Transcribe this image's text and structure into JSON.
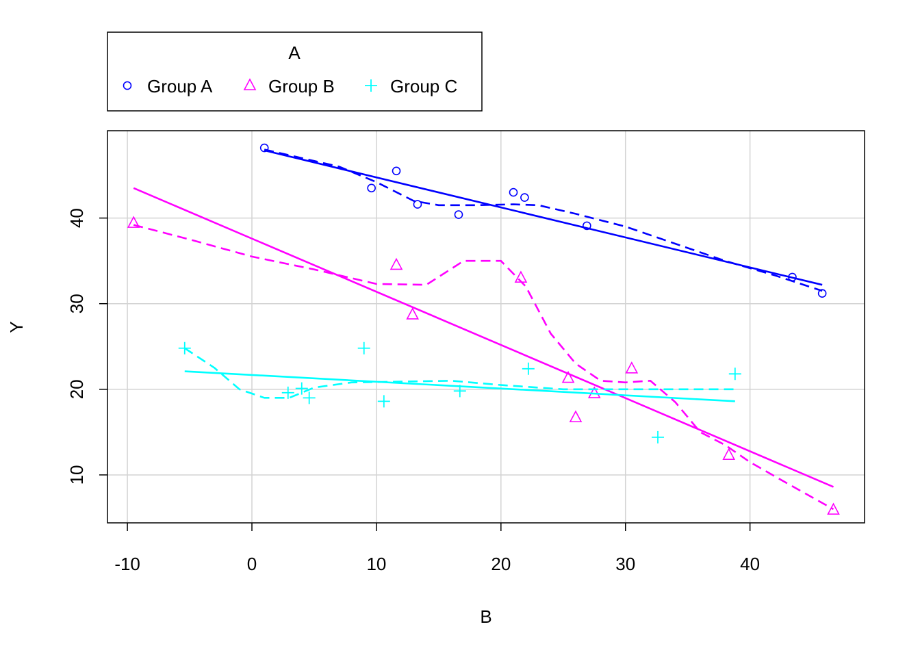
{
  "chart_data": {
    "type": "scatter",
    "xlabel": "B",
    "ylabel": "Y",
    "xlim": [
      -11.6,
      49.2
    ],
    "ylim": [
      4.4,
      50.2
    ],
    "x_ticks": [
      -10,
      0,
      10,
      20,
      30,
      40
    ],
    "y_ticks": [
      10,
      20,
      30,
      40
    ],
    "x_tick_labels": [
      "-10",
      "0",
      "10",
      "20",
      "30",
      "40"
    ],
    "y_tick_labels": [
      "10",
      "20",
      "30",
      "40"
    ],
    "grid": true,
    "legend": {
      "title": "A",
      "placement": "top-left, outside plot area"
    },
    "series": [
      {
        "name": "Group A",
        "color": "#0000FF",
        "marker": "circle",
        "points": [
          [
            1.0,
            48.2
          ],
          [
            9.6,
            43.5
          ],
          [
            11.6,
            45.5
          ],
          [
            13.3,
            41.6
          ],
          [
            16.6,
            40.4
          ],
          [
            21.0,
            43.0
          ],
          [
            21.9,
            42.4
          ],
          [
            26.9,
            39.1
          ],
          [
            43.4,
            33.1
          ],
          [
            45.8,
            31.2
          ]
        ],
        "fit_line": [
          [
            1.0,
            47.9
          ],
          [
            45.8,
            32.2
          ]
        ],
        "smooth_line": [
          [
            1.0,
            48.0
          ],
          [
            4.0,
            47.0
          ],
          [
            7.0,
            46.0
          ],
          [
            10.0,
            44.2
          ],
          [
            13.0,
            42.0
          ],
          [
            15.0,
            41.5
          ],
          [
            18.0,
            41.5
          ],
          [
            21.0,
            41.6
          ],
          [
            23.0,
            41.5
          ],
          [
            26.0,
            40.5
          ],
          [
            30.0,
            39.0
          ],
          [
            34.0,
            37.0
          ],
          [
            38.0,
            35.0
          ],
          [
            42.0,
            33.3
          ],
          [
            45.8,
            31.5
          ]
        ]
      },
      {
        "name": "Group B",
        "color": "#FF00FF",
        "marker": "triangle",
        "points": [
          [
            -9.5,
            39.4
          ],
          [
            11.6,
            34.5
          ],
          [
            12.9,
            28.7
          ],
          [
            21.6,
            33.0
          ],
          [
            25.4,
            21.3
          ],
          [
            26.0,
            16.7
          ],
          [
            27.5,
            19.5
          ],
          [
            30.5,
            22.4
          ],
          [
            38.3,
            12.3
          ],
          [
            46.7,
            5.9
          ]
        ],
        "fit_line": [
          [
            -9.5,
            43.5
          ],
          [
            46.7,
            8.6
          ]
        ],
        "smooth_line": [
          [
            -9.5,
            39.2
          ],
          [
            -5.0,
            37.5
          ],
          [
            0.0,
            35.5
          ],
          [
            5.0,
            34.0
          ],
          [
            10.0,
            32.3
          ],
          [
            14.0,
            32.2
          ],
          [
            17.0,
            35.0
          ],
          [
            20.0,
            35.0
          ],
          [
            22.0,
            32.0
          ],
          [
            24.0,
            26.5
          ],
          [
            26.0,
            23.0
          ],
          [
            28.0,
            21.0
          ],
          [
            30.0,
            20.8
          ],
          [
            32.0,
            21.0
          ],
          [
            34.0,
            18.5
          ],
          [
            36.0,
            15.0
          ],
          [
            38.0,
            13.5
          ],
          [
            40.0,
            11.5
          ],
          [
            43.0,
            9.0
          ],
          [
            46.7,
            6.0
          ]
        ]
      },
      {
        "name": "Group C",
        "color": "#00FFFF",
        "marker": "plus",
        "points": [
          [
            -5.4,
            24.8
          ],
          [
            2.9,
            19.6
          ],
          [
            4.0,
            20.1
          ],
          [
            4.6,
            19.0
          ],
          [
            9.0,
            24.8
          ],
          [
            10.6,
            18.6
          ],
          [
            16.7,
            19.8
          ],
          [
            22.2,
            22.4
          ],
          [
            32.6,
            14.4
          ],
          [
            38.8,
            21.8
          ]
        ],
        "fit_line": [
          [
            -5.4,
            22.1
          ],
          [
            38.8,
            18.6
          ]
        ],
        "smooth_line": [
          [
            -5.4,
            24.8
          ],
          [
            -3.0,
            22.5
          ],
          [
            -1.0,
            20.0
          ],
          [
            1.0,
            19.0
          ],
          [
            3.0,
            19.0
          ],
          [
            5.0,
            20.2
          ],
          [
            8.0,
            20.8
          ],
          [
            12.0,
            20.9
          ],
          [
            16.0,
            21.0
          ],
          [
            20.0,
            20.5
          ],
          [
            25.0,
            20.0
          ],
          [
            30.0,
            20.0
          ],
          [
            35.0,
            20.0
          ],
          [
            38.8,
            20.0
          ]
        ]
      }
    ]
  }
}
